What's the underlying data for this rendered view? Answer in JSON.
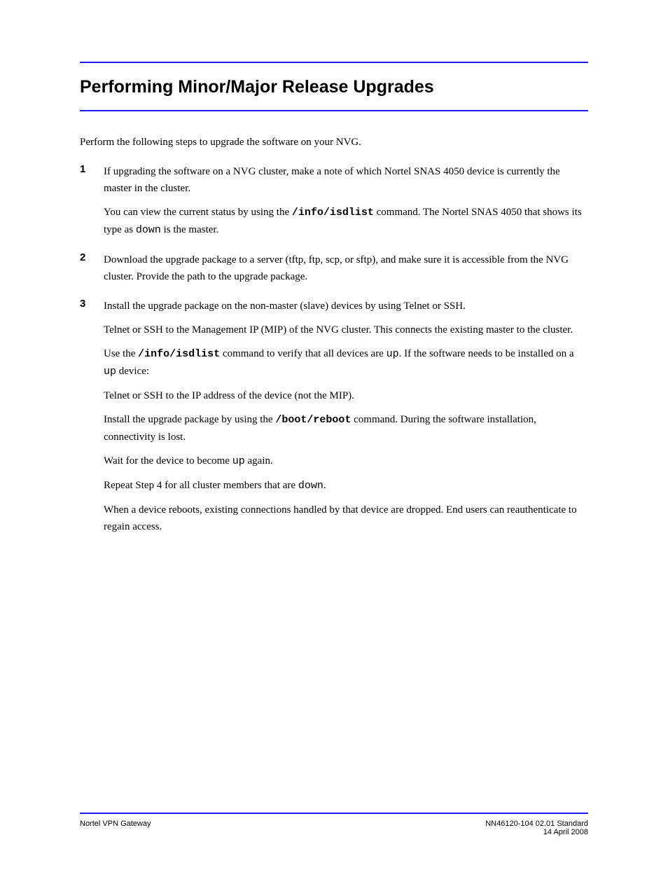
{
  "chapter": {
    "title": "Performing Minor/Major Release Upgrades"
  },
  "intro": "Perform the following steps to upgrade the software on your NVG.",
  "steps": [
    {
      "num": "1",
      "paras": [
        {
          "runs": [
            {
              "t": "If upgrading the software on a NVG cluster, make a note of which Nortel SNAS 4050 device is currently the master in the cluster."
            }
          ]
        },
        {
          "runs": [
            {
              "t": "You can view the current status by using the "
            },
            {
              "t": "/info/isdlist",
              "cls": "cmdbold"
            },
            {
              "t": " command. The Nortel SNAS 4050 that shows its type as "
            },
            {
              "t": "down",
              "cls": "mono"
            },
            {
              "t": " is the master."
            }
          ]
        }
      ]
    },
    {
      "num": "2",
      "paras": [
        {
          "runs": [
            {
              "t": "Download the upgrade package to a server (tftp, ftp, scp, or sftp), and make sure it is accessible from the NVG cluster. Provide the path to the upgrade package."
            }
          ]
        }
      ]
    },
    {
      "num": "3",
      "paras": [
        {
          "runs": [
            {
              "t": "Install the upgrade package on the non-master (slave) devices by using Telnet or SSH."
            }
          ]
        },
        {
          "runs": [
            {
              "t": "Telnet or SSH to the Management IP (MIP) of the NVG cluster. This connects the existing master to the cluster."
            }
          ]
        },
        {
          "runs": [
            {
              "t": "Use the "
            },
            {
              "t": "/info/isdlist",
              "cls": "cmdbold"
            },
            {
              "t": " command to verify that all devices are "
            },
            {
              "t": "up",
              "cls": "mono"
            },
            {
              "t": ". If the software needs to be installed on a "
            },
            {
              "t": "up",
              "cls": "mono"
            },
            {
              "t": " device:"
            }
          ]
        },
        {
          "runs": [
            {
              "t": "Telnet or SSH to the IP address of the device (not the MIP)."
            }
          ]
        },
        {
          "runs": [
            {
              "t": "Install the upgrade package by using the "
            },
            {
              "t": "/boot/reboot",
              "cls": "cmdbold"
            },
            {
              "t": " command. During the software installation, connectivity is lost."
            }
          ]
        },
        {
          "runs": [
            {
              "t": "Wait for the device to become "
            },
            {
              "t": "up",
              "cls": "mono"
            },
            {
              "t": " again."
            }
          ]
        },
        {
          "runs": [
            {
              "t": "Repeat Step 4 for all cluster members that are "
            },
            {
              "t": "down",
              "cls": "mono"
            },
            {
              "t": "."
            }
          ]
        },
        {
          "runs": [
            {
              "t": "When a device reboots, existing connections handled by that device are dropped. End users can reauthenticate to regain access."
            }
          ]
        }
      ]
    }
  ],
  "footer": {
    "left": "Nortel VPN Gateway",
    "right": "NN46120-104 02.01 Standard\n14 April 2008"
  }
}
